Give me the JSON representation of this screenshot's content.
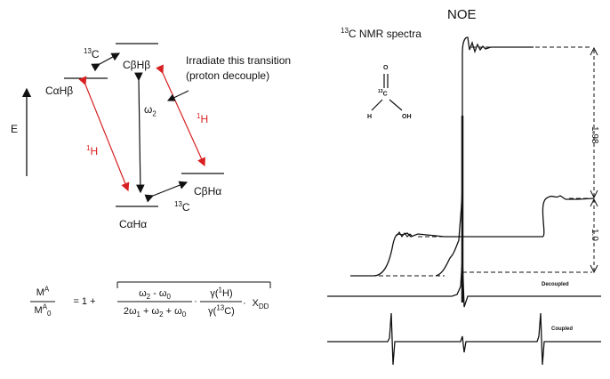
{
  "diagram": {
    "energy_axis": "E",
    "states": {
      "ahb": "CαHβ",
      "bhb": "CβHβ",
      "bha": "CβHα",
      "aha": "CαHα"
    },
    "c13_top": "13C",
    "c13_bottom": "13C",
    "omega": "ω2",
    "h1_left": "1H",
    "h1_right": "1H",
    "irradiate_line1": "Irradiate this transition",
    "irradiate_line2": "(proton decouple)",
    "colors": {
      "red_arrow": "#d82020",
      "black": "#111111"
    }
  },
  "equation": {
    "lhs_num": "MA",
    "lhs_den": "MA0",
    "equals": "= 1 +",
    "frac1_num": "ω2 - ω0",
    "frac1_den": "2ω1 + ω2 + ω0",
    "dot": "·",
    "frac2_num": "γ(1H)",
    "frac2_den": "γ(13C)",
    "xdd": "XDD"
  },
  "spectra": {
    "title": "NOE",
    "subtitle": "13C NMR spectra",
    "scale_top": "1.98",
    "scale_bottom": "1.0",
    "decoupled_label": "Decoupled",
    "coupled_label": "Coupled"
  },
  "molecule": {
    "o": "O",
    "c": "13C",
    "h": "H",
    "oh": "OH"
  }
}
